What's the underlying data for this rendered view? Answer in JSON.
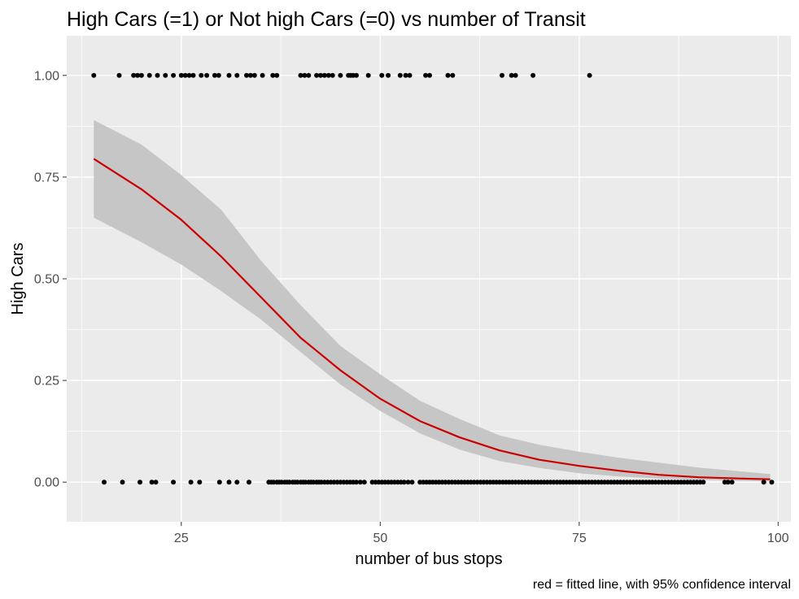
{
  "chart_data": {
    "type": "scatter",
    "title": "High Cars (=1) or Not high Cars (=0) vs number of Transit",
    "xlabel": "number of bus stops",
    "ylabel": "High Cars",
    "caption": "red = fitted line, with 95% confidence interval",
    "xlim": [
      10.6,
      101.6
    ],
    "ylim": [
      -0.0975,
      1.0975
    ],
    "xticks": [
      25,
      50,
      75,
      100
    ],
    "xtick_labels": [
      "25",
      "50",
      "75",
      "100"
    ],
    "yticks": [
      0,
      0.25,
      0.5,
      0.75,
      1.0
    ],
    "ytick_labels": [
      "0.00",
      "0.25",
      "0.50",
      "0.75",
      "1.00"
    ],
    "grid": true,
    "colors": {
      "panel": "#ebebeb",
      "grid": "#ffffff",
      "points": "#000000",
      "fit_line": "#cc0000",
      "confidence_band": "#c6c6c6"
    },
    "points_y1_x": [
      14.0,
      17.2,
      19.0,
      19.5,
      20.0,
      21.0,
      22.0,
      23.0,
      24.0,
      25.0,
      25.5,
      26.0,
      26.5,
      27.5,
      28.2,
      29.2,
      29.7,
      31.0,
      32.0,
      33.2,
      33.7,
      34.2,
      35.2,
      36.5,
      37.0,
      40.0,
      40.5,
      41.0,
      42.0,
      42.5,
      43.0,
      43.5,
      44.0,
      45.0,
      46.0,
      46.3,
      46.6,
      47.0,
      48.5,
      50.2,
      51.0,
      52.5,
      53.2,
      53.7,
      55.7,
      56.2,
      58.5,
      59.1,
      65.3,
      66.5,
      67.0,
      69.2,
      76.3
    ],
    "points_y0_x": [
      15.3,
      17.6,
      19.8,
      21.3,
      21.8,
      24.0,
      26.2,
      27.3,
      29.8,
      31.0,
      32.0,
      33.5,
      36.0,
      36.3,
      36.6,
      37.0,
      37.3,
      37.6,
      38.0,
      38.3,
      38.6,
      39.0,
      39.3,
      39.6,
      40.0,
      40.3,
      40.6,
      41.0,
      41.3,
      41.6,
      42.0,
      42.3,
      42.6,
      43.0,
      43.4,
      43.8,
      44.2,
      44.6,
      45.0,
      45.4,
      45.8,
      46.2,
      46.6,
      47.0,
      47.5,
      48.0,
      49.0,
      49.4,
      49.8,
      50.2,
      50.6,
      51.0,
      51.4,
      51.8,
      52.2,
      52.6,
      53.0,
      53.5,
      54.0,
      55.0,
      55.4,
      55.8,
      56.2,
      56.6,
      57.0,
      57.4,
      57.8,
      58.2,
      58.6,
      59.0,
      59.4,
      59.8,
      60.2,
      60.6,
      61.0,
      61.4,
      61.8,
      62.2,
      62.6,
      63.0,
      63.4,
      63.8,
      64.2,
      64.6,
      65.0,
      65.4,
      65.8,
      66.2,
      66.6,
      67.0,
      67.4,
      67.8,
      68.2,
      68.6,
      69.0,
      69.4,
      69.8,
      70.2,
      70.6,
      71.0,
      71.4,
      71.8,
      72.2,
      72.6,
      73.0,
      73.4,
      73.8,
      74.2,
      74.6,
      75.0,
      75.4,
      75.8,
      76.2,
      76.6,
      77.0,
      77.4,
      77.8,
      78.2,
      78.6,
      79.0,
      79.4,
      79.8,
      80.2,
      80.6,
      81.0,
      81.4,
      81.8,
      82.2,
      82.6,
      83.0,
      83.4,
      83.8,
      84.2,
      84.6,
      85.0,
      85.4,
      85.8,
      86.2,
      86.6,
      87.0,
      87.4,
      87.8,
      88.2,
      88.6,
      89.0,
      89.4,
      89.8,
      90.2,
      90.6,
      93.3,
      93.7,
      94.2,
      98.2,
      99.2
    ],
    "fit_curve": {
      "x": [
        14,
        20,
        25,
        30,
        35,
        40,
        45,
        50,
        55,
        60,
        65,
        70,
        75,
        80,
        85,
        90,
        95,
        99
      ],
      "y": [
        0.795,
        0.72,
        0.645,
        0.555,
        0.455,
        0.355,
        0.275,
        0.205,
        0.15,
        0.11,
        0.078,
        0.055,
        0.04,
        0.028,
        0.018,
        0.012,
        0.009,
        0.007
      ],
      "lower": [
        0.65,
        0.59,
        0.535,
        0.47,
        0.4,
        0.32,
        0.24,
        0.175,
        0.12,
        0.08,
        0.052,
        0.035,
        0.022,
        0.014,
        0.009,
        0.006,
        0.003,
        0.002
      ],
      "upper": [
        0.89,
        0.83,
        0.755,
        0.67,
        0.545,
        0.435,
        0.335,
        0.265,
        0.2,
        0.155,
        0.115,
        0.092,
        0.075,
        0.06,
        0.048,
        0.036,
        0.027,
        0.02
      ]
    }
  }
}
